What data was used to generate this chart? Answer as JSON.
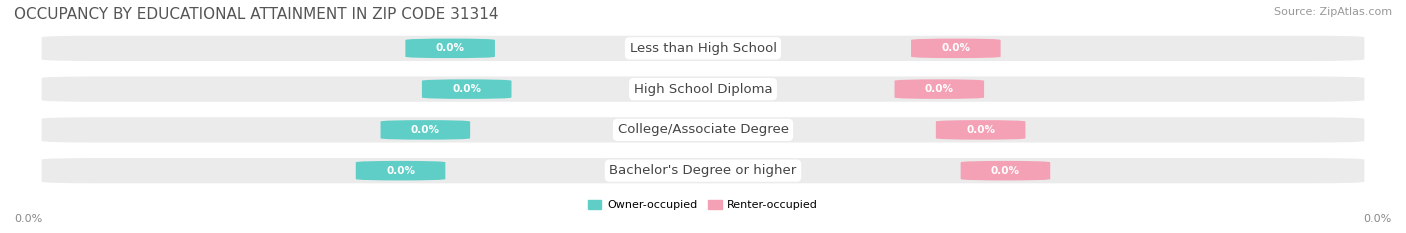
{
  "title": "OCCUPANCY BY EDUCATIONAL ATTAINMENT IN ZIP CODE 31314",
  "source": "Source: ZipAtlas.com",
  "categories": [
    "Less than High School",
    "High School Diploma",
    "College/Associate Degree",
    "Bachelor's Degree or higher"
  ],
  "owner_values": [
    0.0,
    0.0,
    0.0,
    0.0
  ],
  "renter_values": [
    0.0,
    0.0,
    0.0,
    0.0
  ],
  "owner_color": "#5ecec6",
  "renter_color": "#f4a0b5",
  "bar_bg_color": "#ebebeb",
  "left_axis_label": "0.0%",
  "right_axis_label": "0.0%",
  "legend_owner": "Owner-occupied",
  "legend_renter": "Renter-occupied",
  "title_fontsize": 11,
  "source_fontsize": 8,
  "label_fontsize": 8,
  "category_fontsize": 9.5
}
